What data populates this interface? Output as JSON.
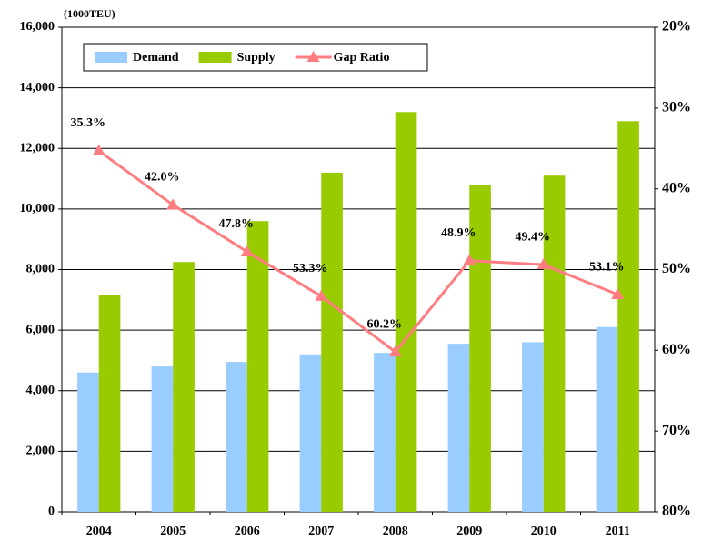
{
  "chart_data": {
    "type": "bar-line",
    "axis_title": "(1000TEU)",
    "categories": [
      "2004",
      "2005",
      "2006",
      "2007",
      "2008",
      "2009",
      "2010",
      "2011"
    ],
    "series": [
      {
        "name": "Demand",
        "type": "bar",
        "color": "#99ccff",
        "values": [
          4600,
          4800,
          4950,
          5200,
          5250,
          5550,
          5600,
          6100
        ]
      },
      {
        "name": "Supply",
        "type": "bar",
        "color": "#99cc00",
        "values": [
          7150,
          8250,
          9600,
          11200,
          13200,
          10800,
          11100,
          12900
        ]
      },
      {
        "name": "Gap Ratio",
        "type": "line",
        "axis": "y2",
        "color": "#ff7c80",
        "values": [
          35.3,
          42.0,
          47.8,
          53.3,
          60.2,
          48.9,
          49.4,
          53.1
        ],
        "value_labels": [
          "35.3%",
          "42.0%",
          "47.8%",
          "53.3%",
          "60.2%",
          "48.9%",
          "49.4%",
          "53.1%"
        ]
      }
    ],
    "ylim": [
      0,
      16000
    ],
    "yticks": [
      {
        "value": 0,
        "label": "0"
      },
      {
        "value": 2000,
        "label": "2,000"
      },
      {
        "value": 4000,
        "label": "4,000"
      },
      {
        "value": 6000,
        "label": "6,000"
      },
      {
        "value": 8000,
        "label": "8,000"
      },
      {
        "value": 10000,
        "label": "10,000"
      },
      {
        "value": 12000,
        "label": "12,000"
      },
      {
        "value": 14000,
        "label": "14,000"
      },
      {
        "value": 16000,
        "label": "16,000"
      }
    ],
    "y2lim": [
      80,
      20
    ],
    "y2ticks": [
      {
        "value": 80,
        "label": "80%"
      },
      {
        "value": 70,
        "label": "70%"
      },
      {
        "value": 60,
        "label": "60%"
      },
      {
        "value": 50,
        "label": "50%"
      },
      {
        "value": 40,
        "label": "40%"
      },
      {
        "value": 30,
        "label": "30%"
      },
      {
        "value": 20,
        "label": "20%"
      }
    ],
    "grid": true
  }
}
